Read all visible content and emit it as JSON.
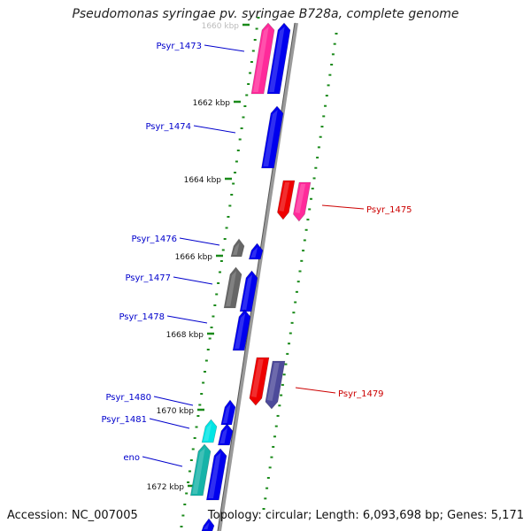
{
  "title": "Pseudomonas syringae pv. syringae B728a, complete genome",
  "footer": {
    "accession": "Accession: NC_007005",
    "summary": "Topology: circular; Length: 6,093,698 bp; Genes: 5,171"
  },
  "colors": {
    "blue": "#0000ee",
    "red": "#ee0000",
    "magenta": "#ff2a9a",
    "gray": "#666666",
    "cyan": "#00e5e5",
    "teal": "#16b3a8",
    "slate": "#4d4a9a",
    "tick": "#1a8a1a",
    "spine": "#888888",
    "blueLabel": "#0000cc",
    "redLabel": "#cc0000"
  },
  "ruler": [
    {
      "label": "1660 kbp"
    },
    {
      "label": "1662 kbp"
    },
    {
      "label": "1664 kbp"
    },
    {
      "label": "1666 kbp"
    },
    {
      "label": "1668 kbp"
    },
    {
      "label": "1670 kbp"
    },
    {
      "label": "1672 kbp"
    }
  ],
  "genes": [
    {
      "name": "Psyr_1473",
      "strand": "-",
      "color": "magenta"
    },
    {
      "name": "",
      "strand": "-",
      "color": "blue"
    },
    {
      "name": "Psyr_1474",
      "strand": "-",
      "color": "blue"
    },
    {
      "name": "Psyr_1475",
      "strand": "+",
      "color": "red"
    },
    {
      "name": "",
      "strand": "+",
      "color": "magenta"
    },
    {
      "name": "Psyr_1476",
      "strand": "-",
      "color": "gray"
    },
    {
      "name": "",
      "strand": "-",
      "color": "blue"
    },
    {
      "name": "Psyr_1477",
      "strand": "-",
      "color": "gray"
    },
    {
      "name": "",
      "strand": "-",
      "color": "blue"
    },
    {
      "name": "Psyr_1478",
      "strand": "-",
      "color": "blue"
    },
    {
      "name": "Psyr_1479",
      "strand": "+",
      "color": "red"
    },
    {
      "name": "",
      "strand": "+",
      "color": "slate"
    },
    {
      "name": "Psyr_1480",
      "strand": "-",
      "color": "blue"
    },
    {
      "name": "Psyr_1481",
      "strand": "-",
      "color": "cyan"
    },
    {
      "name": "",
      "strand": "-",
      "color": "blue"
    },
    {
      "name": "eno",
      "strand": "-",
      "color": "teal"
    },
    {
      "name": "",
      "strand": "-",
      "color": "blue"
    },
    {
      "name": "",
      "strand": "-",
      "color": "blue"
    }
  ]
}
